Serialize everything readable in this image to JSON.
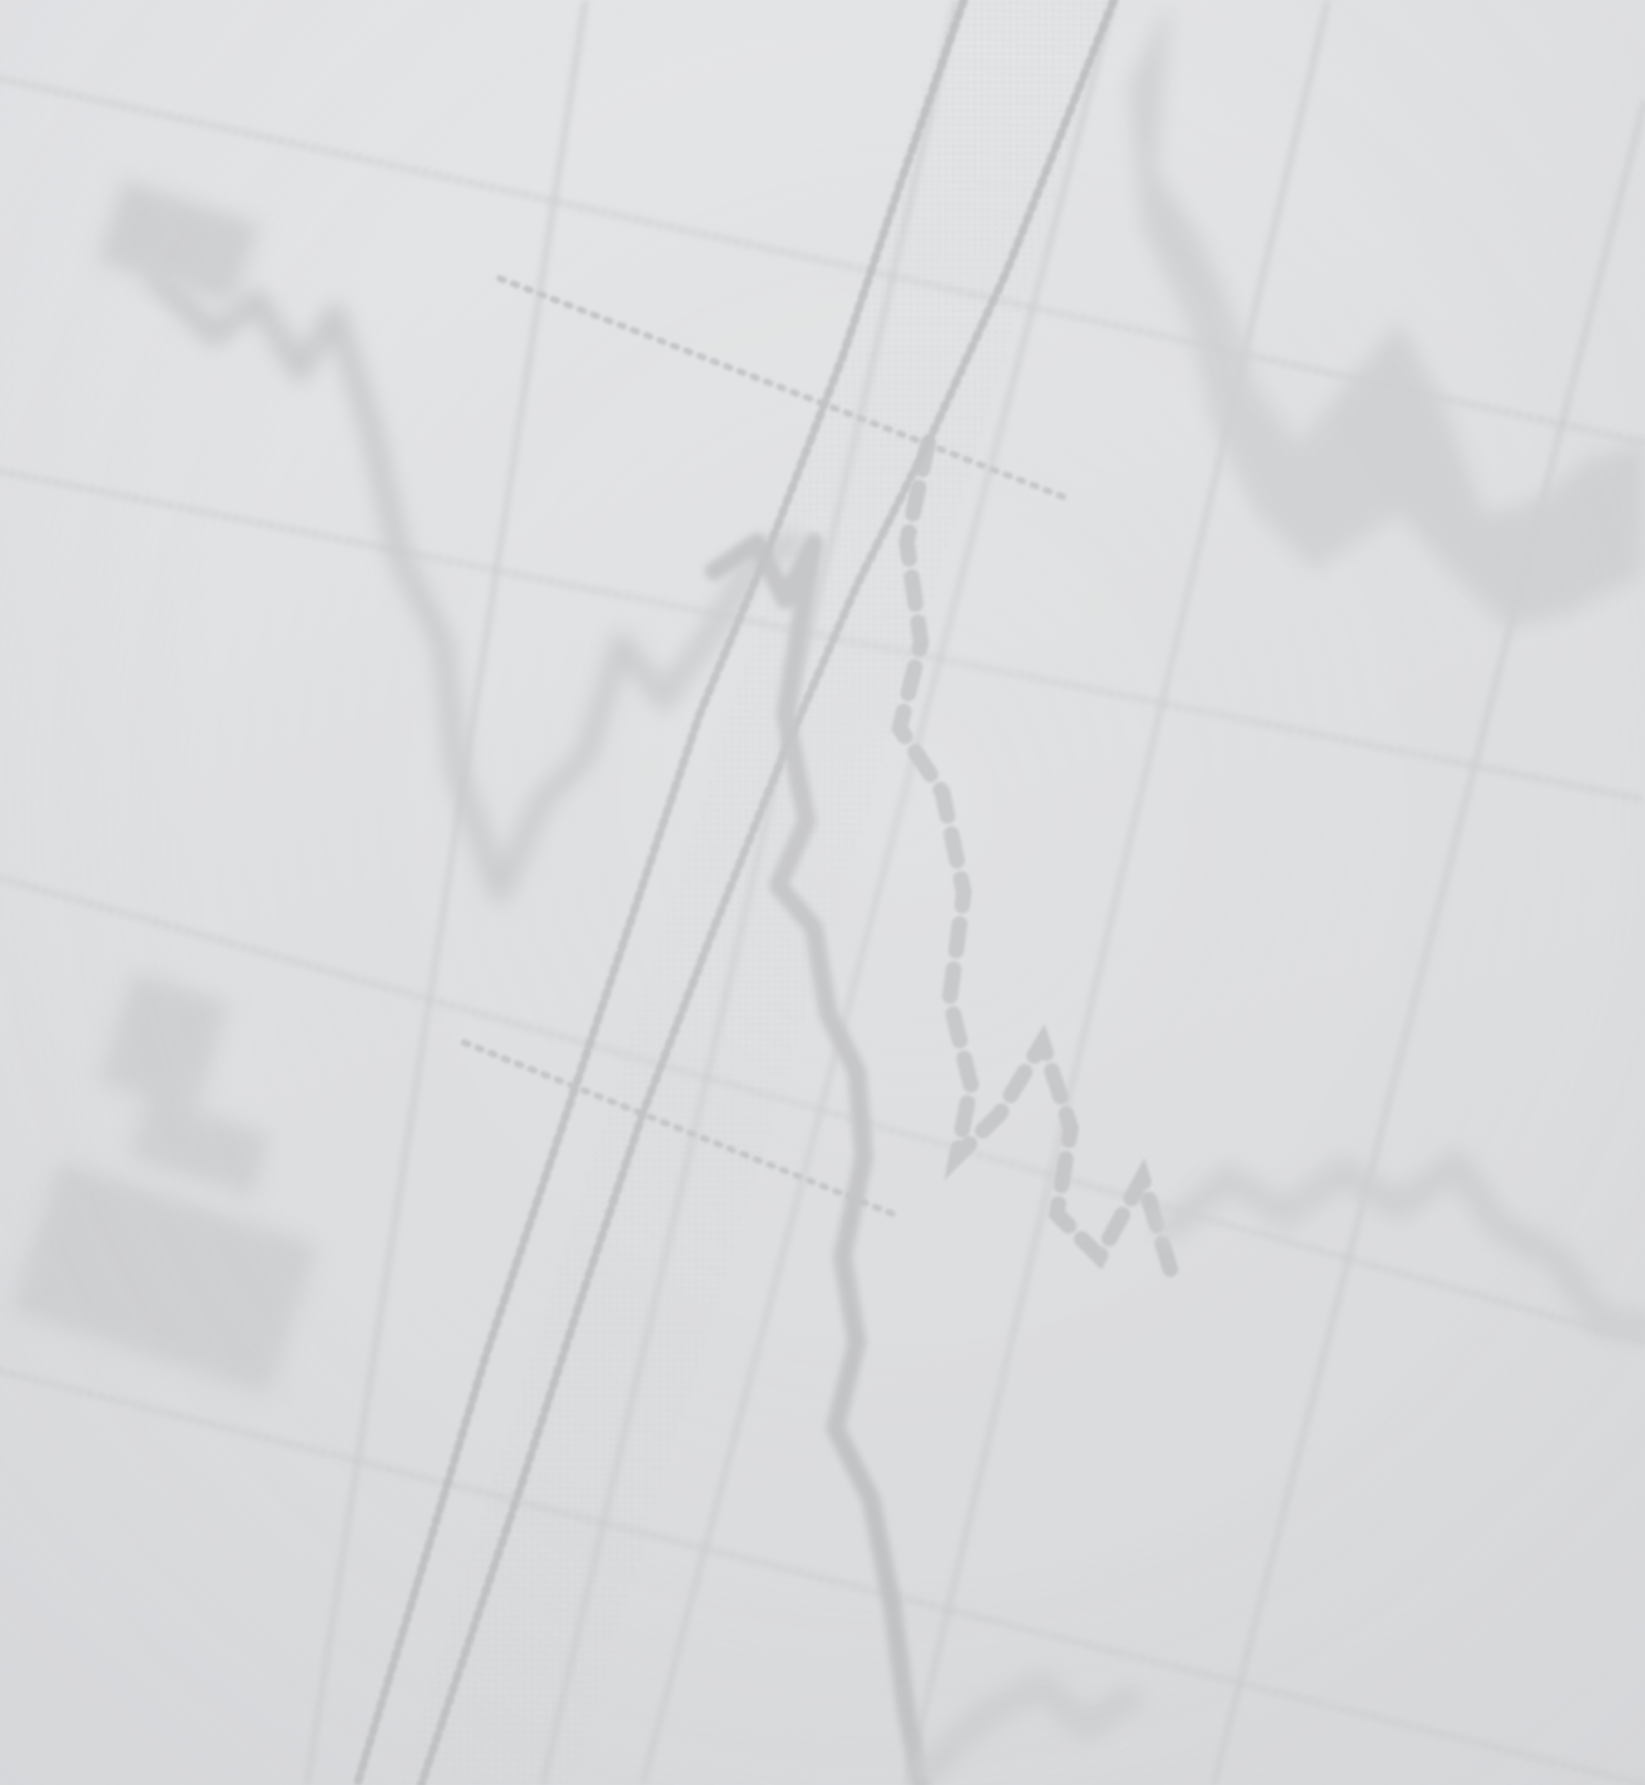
{
  "scene": {
    "description_tag": "blurred-financial-chart-photo",
    "colors": {
      "background": "#dfe0e2",
      "grid": "#c9cacc",
      "line": "#c3c4c6",
      "band": "#d3d4d6"
    }
  }
}
